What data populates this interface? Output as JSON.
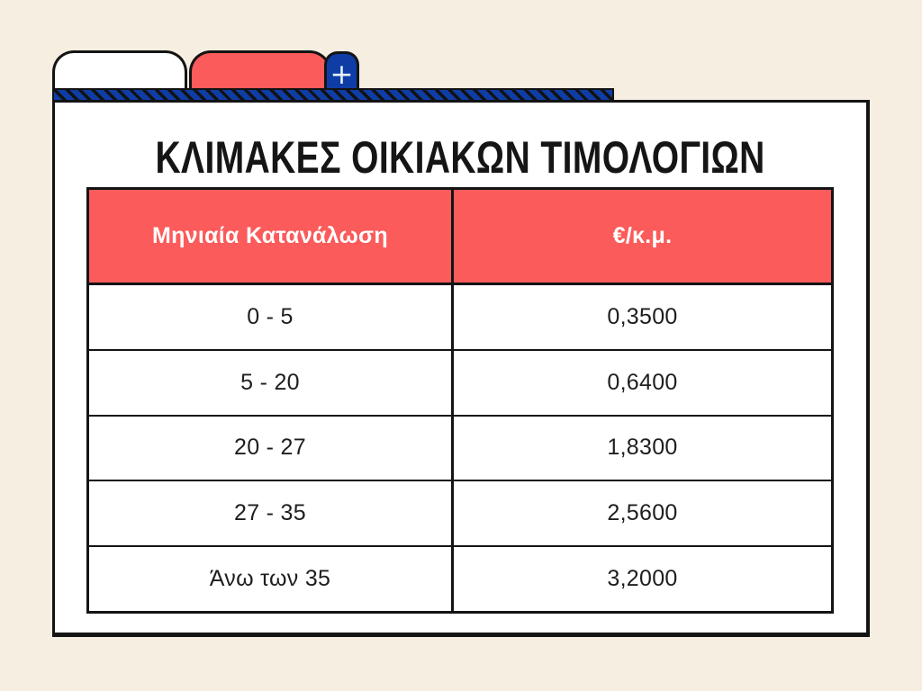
{
  "colors": {
    "background": "#f5eee1",
    "card": "#ffffff",
    "accent_red": "#fb5b5a",
    "accent_blue": "#0e3da6",
    "outline": "#141414",
    "header_text": "#ffffff",
    "body_text": "#1e1e1e"
  },
  "tabs": {
    "plus_icon": "+"
  },
  "card": {
    "title": "ΚΛΙΜΑΚΕΣ ΟΙΚΙΑΚΩΝ ΤΙΜΟΛΟΓΙΩΝ"
  },
  "table": {
    "header": {
      "consumption": "Μηνιαία Κατανάλωση",
      "price": "€/κ.μ."
    },
    "rows": [
      {
        "range": "0 - 5",
        "price": "0,3500"
      },
      {
        "range": "5 - 20",
        "price": "0,6400"
      },
      {
        "range": "20 - 27",
        "price": "1,8300"
      },
      {
        "range": "27 - 35",
        "price": "2,5600"
      },
      {
        "range": "Άνω των 35",
        "price": "3,2000"
      }
    ]
  },
  "chart_data": {
    "type": "table",
    "title": "ΚΛΙΜΑΚΕΣ ΟΙΚΙΑΚΩΝ ΤΙΜΟΛΟΓΙΩΝ",
    "columns": [
      "Μηνιαία Κατανάλωση",
      "€/κ.μ."
    ],
    "rows": [
      [
        "0 - 5",
        "0,3500"
      ],
      [
        "5 - 20",
        "0,6400"
      ],
      [
        "20 - 27",
        "1,8300"
      ],
      [
        "27 - 35",
        "2,5600"
      ],
      [
        "Άνω των 35",
        "3,2000"
      ]
    ],
    "consumption_ranges_cubic_meters": [
      "0 - 5",
      "5 - 20",
      "20 - 27",
      "27 - 35",
      "Άνω των 35"
    ],
    "price_eur_per_cubic_meter": [
      0.35,
      0.64,
      1.83,
      2.56,
      3.2
    ]
  }
}
